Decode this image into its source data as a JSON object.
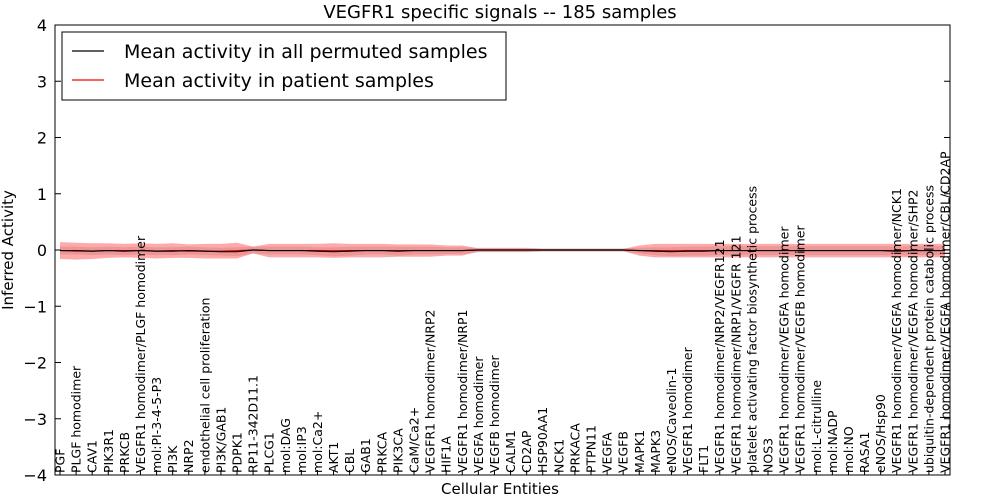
{
  "chart_data": {
    "type": "line",
    "title": "VEGFR1 specific signals -- 185 samples",
    "xlabel": "Cellular Entities",
    "ylabel": "Inferred Activity",
    "ylim": [
      -4,
      4
    ],
    "yticks": [
      4,
      3,
      2,
      1,
      0,
      -1,
      -2,
      -3,
      -4
    ],
    "ytick_labels": [
      "4",
      "3",
      "2",
      "1",
      "0",
      "−1",
      "−2",
      "−3",
      "−4"
    ],
    "legend": {
      "placement": "top-left",
      "entries": [
        {
          "label": "Mean activity in all permuted samples",
          "color": "#000000"
        },
        {
          "label": "Mean activity in patient samples",
          "color": "#ff0000"
        }
      ]
    },
    "categories": [
      "PGF",
      "PLGF homodimer",
      "CAV1",
      "PIK3R1",
      "PRKCB",
      "VEGFR1 homodimer/PLGF homodimer",
      "mol:PI-3-4-5-P3",
      "PI3K",
      "NRP2",
      "endothelial cell proliferation",
      "PI3K/GAB1",
      "PDPK1",
      "RP11-342D11.1",
      "PLCG1",
      "mol:DAG",
      "mol:IP3",
      "mol:Ca2+",
      "AKT1",
      "CBL",
      "GAB1",
      "PRKCA",
      "PIK3CA",
      "CaM/Ca2+",
      "VEGFR1 homodimer/NRP2",
      "HIF1A",
      "VEGFR1 homodimer/NRP1",
      "VEGFA homodimer",
      "VEGFB homodimer",
      "CALM1",
      "CD2AP",
      "HSP90AA1",
      "NCK1",
      "PRKACA",
      "PTPN11",
      "VEGFA",
      "VEGFB",
      "MAPK1",
      "MAPK3",
      "eNOS/Caveolin-1",
      "VEGFR1 homodimer",
      "FLT1",
      "VEGFR1 homodimer/NRP2/VEGFR121",
      "VEGFR1 homodimer/NRP1/VEGFR 121",
      "platelet activating factor biosynthetic process",
      "NOS3",
      "VEGFR1 homodimer/VEGFA homodimer",
      "VEGFR1 homodimer/VEGFB homodimer",
      "mol:L-citrulline",
      "mol:NADP",
      "mol:NO",
      "RASA1",
      "eNOS/Hsp90",
      "VEGFR1 homodimer/VEGFA homodimer/NCK1",
      "VEGFR1 homodimer/VEGFA homodimer/SHP2",
      "ubiquitin-dependent protein catabolic process",
      "VEGFR1 homodimer/VEGFA homodimer/CBL/CD2AP"
    ],
    "series": [
      {
        "name": "Mean activity in all permuted samples",
        "color": "#000000",
        "values": [
          -0.01,
          -0.01,
          -0.02,
          -0.01,
          -0.02,
          -0.01,
          -0.02,
          -0.02,
          -0.01,
          -0.02,
          -0.03,
          -0.03,
          0.0,
          -0.01,
          -0.01,
          -0.01,
          -0.02,
          -0.03,
          -0.02,
          -0.01,
          -0.01,
          -0.02,
          -0.01,
          -0.01,
          -0.01,
          -0.01,
          0.0,
          0.0,
          0.0,
          0.0,
          0.0,
          0.0,
          0.0,
          0.0,
          0.0,
          0.0,
          -0.01,
          -0.02,
          -0.03,
          -0.02,
          -0.02,
          -0.01,
          -0.01,
          -0.01,
          -0.01,
          -0.01,
          -0.01,
          -0.01,
          -0.01,
          -0.01,
          -0.01,
          -0.01,
          -0.02,
          -0.01,
          -0.01,
          -0.01
        ],
        "band": [
          0.07,
          0.07,
          0.07,
          0.07,
          0.07,
          0.07,
          0.07,
          0.07,
          0.07,
          0.07,
          0.07,
          0.08,
          0.06,
          0.07,
          0.07,
          0.07,
          0.07,
          0.08,
          0.08,
          0.07,
          0.07,
          0.08,
          0.07,
          0.07,
          0.06,
          0.06,
          0.04,
          0.04,
          0.04,
          0.04,
          0.03,
          0.03,
          0.03,
          0.03,
          0.03,
          0.03,
          0.05,
          0.07,
          0.08,
          0.08,
          0.08,
          0.08,
          0.08,
          0.08,
          0.08,
          0.08,
          0.08,
          0.08,
          0.08,
          0.08,
          0.08,
          0.08,
          0.08,
          0.08,
          0.08,
          0.08
        ]
      },
      {
        "name": "Mean activity in patient samples",
        "color": "#ff0000",
        "values": [
          -0.01,
          -0.02,
          -0.02,
          -0.01,
          -0.01,
          -0.01,
          -0.02,
          -0.01,
          -0.02,
          -0.02,
          -0.02,
          -0.01,
          0.0,
          -0.01,
          -0.01,
          -0.01,
          -0.01,
          -0.01,
          -0.01,
          -0.01,
          -0.01,
          -0.01,
          -0.01,
          -0.01,
          -0.01,
          -0.01,
          0.0,
          0.0,
          0.0,
          0.0,
          0.0,
          0.0,
          0.0,
          0.0,
          0.0,
          0.0,
          -0.01,
          -0.01,
          -0.01,
          -0.01,
          -0.01,
          -0.01,
          -0.01,
          -0.01,
          -0.01,
          -0.01,
          -0.01,
          -0.01,
          -0.01,
          -0.01,
          -0.01,
          -0.01,
          -0.01,
          -0.01,
          -0.01,
          -0.01
        ],
        "band": [
          0.15,
          0.15,
          0.14,
          0.13,
          0.12,
          0.13,
          0.13,
          0.13,
          0.12,
          0.13,
          0.13,
          0.14,
          0.06,
          0.12,
          0.12,
          0.12,
          0.12,
          0.13,
          0.12,
          0.12,
          0.12,
          0.11,
          0.11,
          0.11,
          0.09,
          0.09,
          0.03,
          0.03,
          0.03,
          0.03,
          0.02,
          0.02,
          0.02,
          0.02,
          0.02,
          0.02,
          0.09,
          0.12,
          0.12,
          0.12,
          0.12,
          0.12,
          0.12,
          0.12,
          0.12,
          0.12,
          0.12,
          0.12,
          0.12,
          0.12,
          0.12,
          0.12,
          0.12,
          0.12,
          0.12,
          0.12
        ]
      }
    ],
    "grid": false
  }
}
